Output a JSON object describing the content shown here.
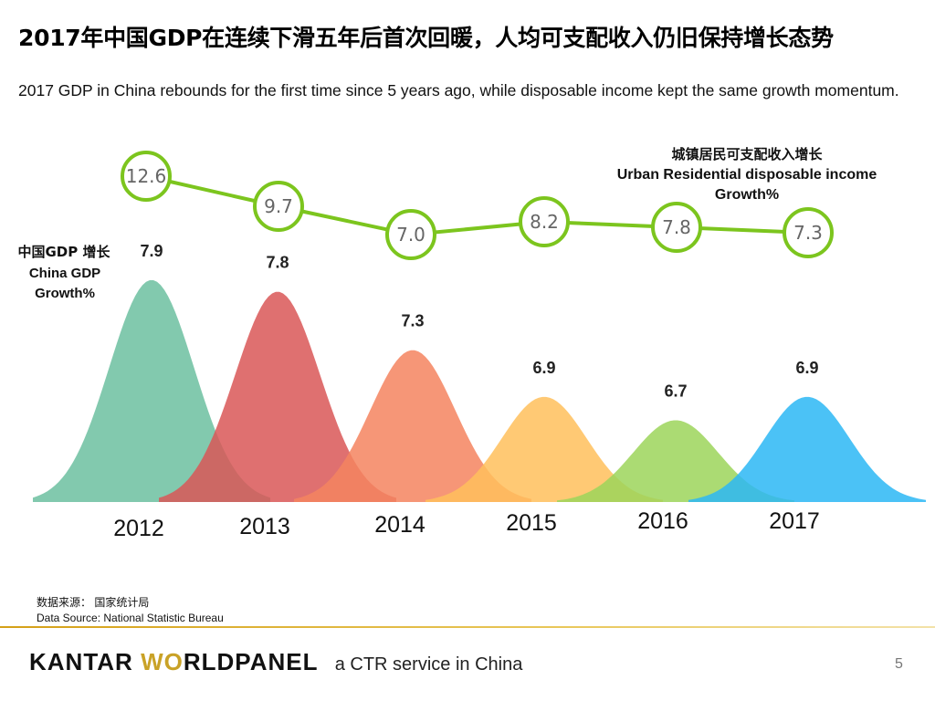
{
  "title_cn": "2017年中国GDP在连续下滑五年后首次回暖，人均可支配收入仍旧保持增长态势",
  "title_en": "2017 GDP in China rebounds for the first time since 5 years ago, while disposable income kept the same growth momentum.",
  "chart_data": {
    "type": "line+area",
    "categories": [
      "2012",
      "2013",
      "2014",
      "2015",
      "2016",
      "2017"
    ],
    "series": [
      {
        "name": "Urban Residential disposable income Growth%",
        "label_cn": "城镇居民可支配收入增长",
        "label_en_line1": "Urban Residential disposable income",
        "label_en_line2": "Growth%",
        "values": [
          12.6,
          9.7,
          7.0,
          8.2,
          7.8,
          7.3
        ],
        "value_labels": [
          "12.6",
          "9.7",
          "7.0",
          "8.2",
          "7.8",
          "7.3"
        ],
        "color": "#7cc51e"
      },
      {
        "name": "China GDP Growth%",
        "label_cn": "中国GDP 增长",
        "label_en_line1": "China GDP",
        "label_en_line2": "Growth%",
        "values": [
          7.9,
          7.8,
          7.3,
          6.9,
          6.7,
          6.9
        ],
        "value_labels": [
          "7.9",
          "7.8",
          "7.3",
          "6.9",
          "6.7",
          "6.9"
        ],
        "colors": [
          "#6cc0a0",
          "#d95757",
          "#f4845f",
          "#ffc05c",
          "#9cd55a",
          "#2bb7f5"
        ]
      }
    ]
  },
  "source_cn": "数据来源： 国家统计局",
  "source_en": "Data Source: National Statistic Bureau",
  "footer": {
    "brand_kantar": "KANTAR",
    "brand_worldpanel_w": "W",
    "brand_worldpanel_o": "O",
    "brand_worldpanel_rest": "RLDPANEL",
    "tagline": "a CTR service in China",
    "page_number": "5",
    "accent_color": "#c9a227"
  }
}
